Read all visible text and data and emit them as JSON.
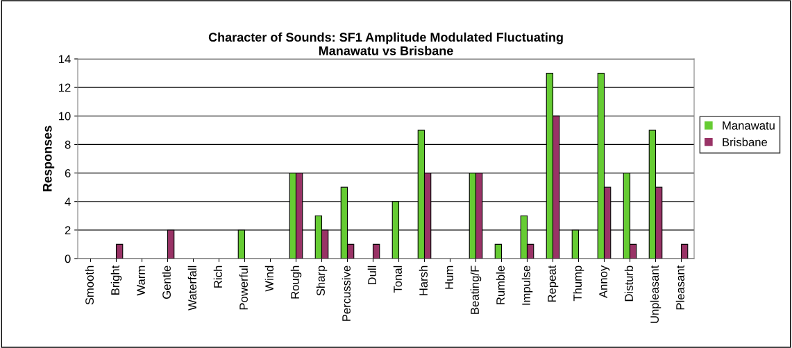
{
  "chart_data": {
    "type": "bar",
    "title": "Character of Sounds: SF1 Amplitude Modulated Fluctuating\nManawatu vs Brisbane",
    "ylabel": "Responses",
    "categories": [
      "Smooth",
      "Bright",
      "Warm",
      "Gentle",
      "Waterfall",
      "Rich",
      "Powerful",
      "Wind",
      "Rough",
      "Sharp",
      "Percussive",
      "Dull",
      "Tonal",
      "Harsh",
      "Hum",
      "Beating/F",
      "Rumble",
      "Impulse",
      "Repeat",
      "Thump",
      "Annoy",
      "Disturb",
      "Unpleasant",
      "Pleasant"
    ],
    "series": [
      {
        "name": "Manawatu",
        "color": "#66cc33",
        "values": [
          0,
          0,
          0,
          0,
          0,
          0,
          2,
          0,
          6,
          3,
          5,
          0,
          4,
          9,
          0,
          6,
          1,
          3,
          13,
          2,
          13,
          6,
          9,
          0
        ]
      },
      {
        "name": "Brisbane",
        "color": "#993366",
        "values": [
          0,
          1,
          0,
          2,
          0,
          0,
          0,
          0,
          6,
          2,
          1,
          1,
          0,
          6,
          0,
          6,
          0,
          1,
          10,
          0,
          5,
          1,
          5,
          1
        ]
      }
    ],
    "ylim": [
      0,
      14
    ],
    "yticks": [
      0,
      2,
      4,
      6,
      8,
      10,
      12,
      14
    ],
    "grid": "y",
    "legend": "right"
  }
}
